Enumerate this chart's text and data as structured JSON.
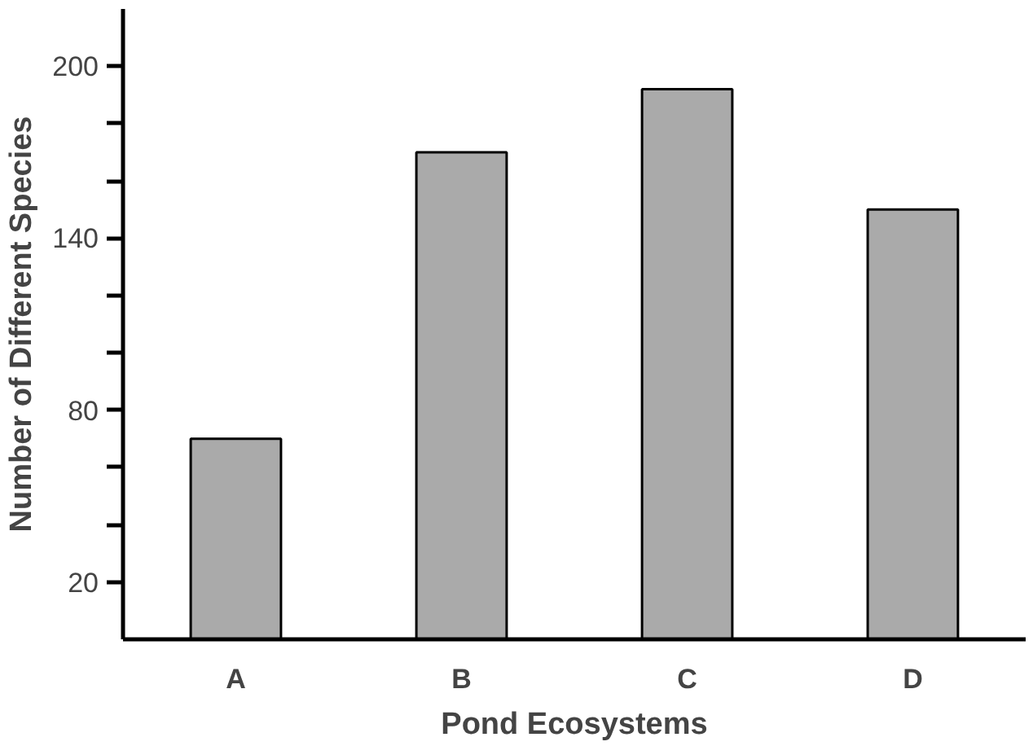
{
  "chart_data": {
    "type": "bar",
    "xlabel": "Pond Ecosystems",
    "ylabel": "Number of Different Species",
    "categories": [
      "A",
      "B",
      "C",
      "D"
    ],
    "values": [
      70,
      170,
      192,
      150
    ],
    "color": "#aaaaaa",
    "ylim": [
      0,
      220
    ],
    "yticks": [
      {
        "value": 20,
        "label": "20"
      },
      {
        "value": 40,
        "label": null
      },
      {
        "value": 60,
        "label": null
      },
      {
        "value": 80,
        "label": "80"
      },
      {
        "value": 100,
        "label": null
      },
      {
        "value": 120,
        "label": null
      },
      {
        "value": 140,
        "label": "140"
      },
      {
        "value": 160,
        "label": null
      },
      {
        "value": 180,
        "label": null
      },
      {
        "value": 200,
        "label": "200"
      }
    ],
    "grid": false
  }
}
